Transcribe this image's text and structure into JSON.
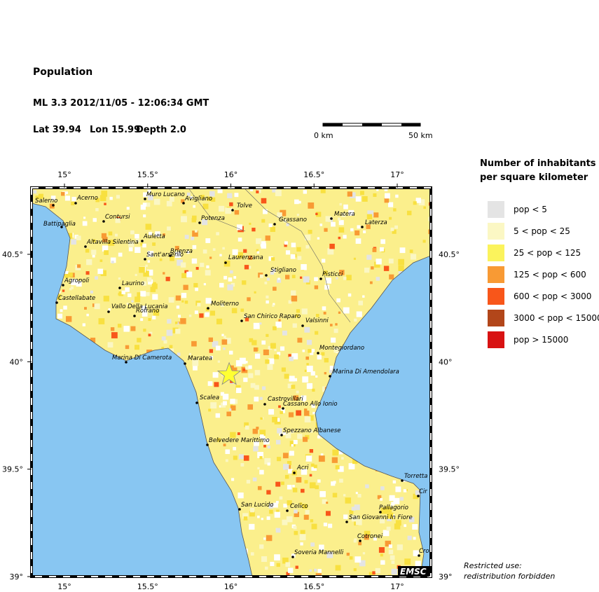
{
  "header": {
    "title": "Population",
    "event": "ML 3.3  2012/11/05 - 12:06:34 GMT"
  },
  "event": {
    "lat": {
      "value": 39.94,
      "label": "Lat 39.94"
    },
    "lon": {
      "value": 15.99,
      "label": "Lon 15.99"
    },
    "depth": {
      "value": 2.0,
      "label": "Depth  2.0"
    }
  },
  "scale_bar": {
    "start": "0 km",
    "end": "50 km"
  },
  "map": {
    "lon_ticks": [
      {
        "value": 15,
        "label": "15°"
      },
      {
        "value": 15.5,
        "label": "15.5°"
      },
      {
        "value": 16,
        "label": "16°"
      },
      {
        "value": 16.5,
        "label": "16.5°"
      },
      {
        "value": 17,
        "label": "17°"
      }
    ],
    "lat_ticks": [
      {
        "value": 40.5,
        "label": "40.5°"
      },
      {
        "value": 40,
        "label": "40°"
      },
      {
        "value": 39.5,
        "label": "39.5°"
      },
      {
        "value": 39,
        "label": "39°"
      }
    ],
    "towns": [
      "Salerno",
      "Acerno",
      "Muro Lucano",
      "Avigliano",
      "Contursi",
      "Battipaglia",
      "Potenza",
      "Tolve",
      "Grassano",
      "Matera",
      "Laterza",
      "Altavilla Silentina",
      "Auletta",
      "Sant'arsenio",
      "Brienza",
      "Laurenzana",
      "Stigliano",
      "Pisticci",
      "Agropoli",
      "Laurino",
      "Castellabate",
      "Vallo Della Lucania",
      "Rofrano",
      "Moliterno",
      "San Chirico Raparo",
      "Valsinni",
      "Montegiordano",
      "Marina Di Camerota",
      "Maratea",
      "Marina Di Amendolara",
      "Scalea",
      "Castrovillari",
      "Cassano Allo Ionio",
      "Spezzano Albanese",
      "Belvedere Marittimo",
      "Acri",
      "Torretta",
      "Cir",
      "San Lucido",
      "Celico",
      "Pallagorio",
      "San Giovanni In Fiore",
      "Cotronei",
      "Cro",
      "Soveria Mannelli"
    ],
    "logo": "EMSC"
  },
  "legend": {
    "title": [
      "Number of inhabitants",
      "per square kilometer"
    ],
    "items": [
      {
        "label": "pop < 5",
        "color": "#e4e4e4"
      },
      {
        "label": "5 < pop < 25",
        "color": "#fbf7c4"
      },
      {
        "label": "25 < pop < 125",
        "color": "#fbf35c"
      },
      {
        "label": "125 < pop < 600",
        "color": "#f89a34"
      },
      {
        "label": "600 < pop < 3000",
        "color": "#f8561a"
      },
      {
        "label": "3000 < pop < 15000",
        "color": "#b2461a"
      },
      {
        "label": "pop > 15000",
        "color": "#d81212"
      }
    ]
  },
  "footer": [
    "Restricted use:",
    "redistribution forbidden"
  ]
}
